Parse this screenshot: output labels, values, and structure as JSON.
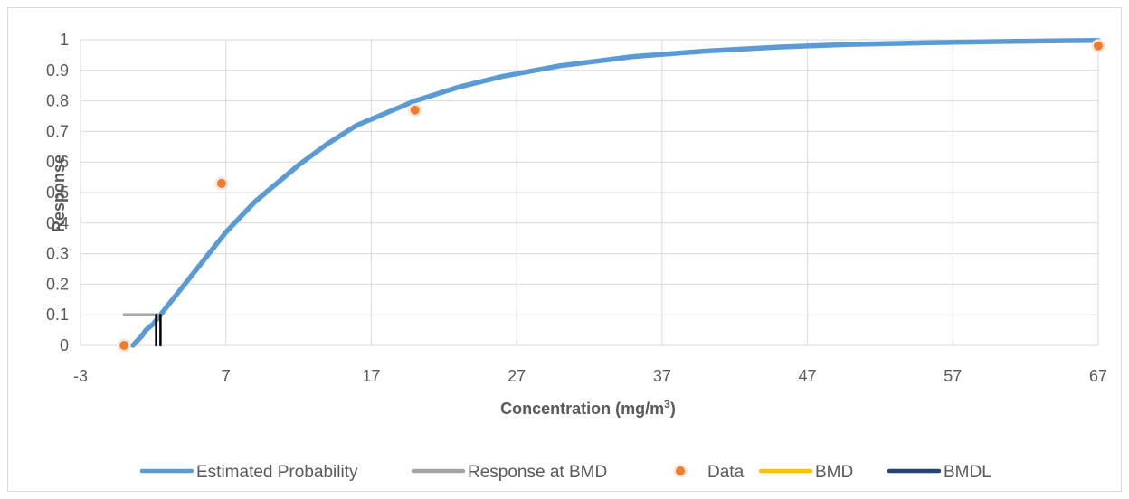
{
  "chart_data": {
    "type": "line",
    "xlabel_main": "Concentration (mg/m",
    "xlabel_sup": "3",
    "xlabel_end": ")",
    "ylabel": "Response",
    "xlim": [
      -3,
      67
    ],
    "ylim": [
      0,
      1
    ],
    "x_ticks": [
      "-3",
      "7",
      "17",
      "27",
      "37",
      "47",
      "57",
      "67"
    ],
    "y_ticks": [
      "0",
      "0.1",
      "0.2",
      "0.3",
      "0.4",
      "0.5",
      "0.6",
      "0.7",
      "0.8",
      "0.9",
      "1"
    ],
    "grid": true,
    "legend_position": "bottom",
    "series": [
      {
        "name": "Estimated Probability",
        "kind": "line",
        "color": "#5b9bd5",
        "x": [
          0.6,
          0.8,
          1.0,
          1.2,
          1.5,
          2.0,
          2.5,
          3.0,
          4.0,
          5.0,
          6.0,
          7.0,
          8.0,
          9.0,
          10.0,
          12.0,
          14.0,
          16.0,
          18.0,
          20.0,
          23.0,
          26.0,
          30.0,
          35.0,
          40.0,
          45.0,
          50.0,
          55.0,
          60.0,
          65.0,
          67.0
        ],
        "y": [
          0.0,
          0.01,
          0.02,
          0.03,
          0.05,
          0.07,
          0.1,
          0.13,
          0.19,
          0.25,
          0.31,
          0.37,
          0.42,
          0.47,
          0.51,
          0.59,
          0.66,
          0.72,
          0.76,
          0.8,
          0.845,
          0.88,
          0.915,
          0.945,
          0.963,
          0.976,
          0.985,
          0.99,
          0.994,
          0.997,
          0.998
        ]
      },
      {
        "name": "Response at BMD",
        "kind": "line",
        "color": "#a5a5a5",
        "x": [
          0.0,
          2.5
        ],
        "y": [
          0.1,
          0.1
        ]
      },
      {
        "name": "Data",
        "kind": "scatter",
        "color": "#ed7d31",
        "x": [
          0.0,
          6.7,
          20.0,
          67.0
        ],
        "y": [
          0.0,
          0.53,
          0.77,
          0.98
        ]
      },
      {
        "name": "BMD",
        "kind": "line",
        "color": "#ffc000",
        "x": [
          2.5,
          2.5
        ],
        "y": [
          0.0,
          0.1
        ]
      },
      {
        "name": "BMDL",
        "kind": "line",
        "color": "#264478",
        "x": [
          2.2,
          2.2
        ],
        "y": [
          0.0,
          0.1
        ]
      }
    ]
  }
}
